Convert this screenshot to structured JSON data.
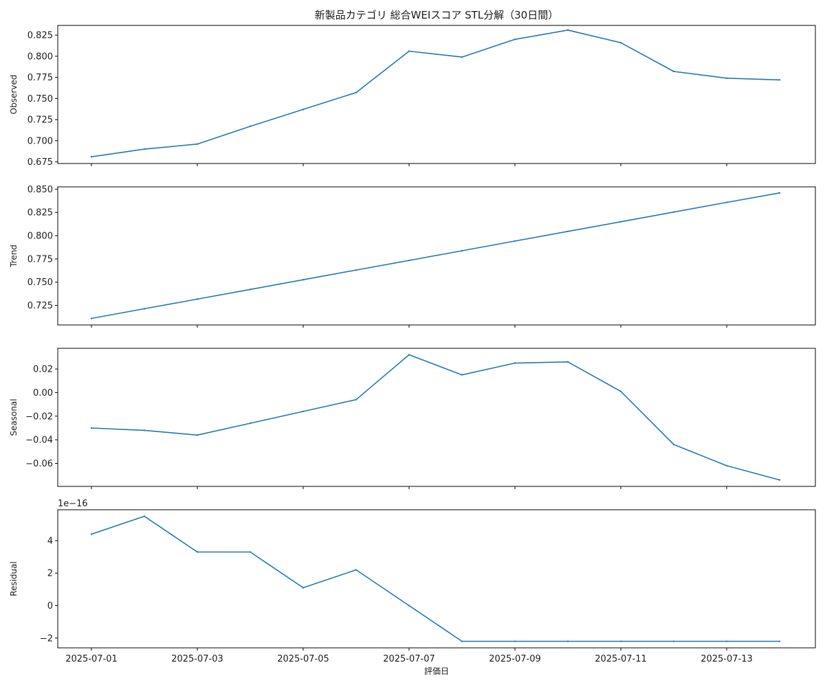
{
  "chart_data": {
    "type": "line",
    "title": "新製品カテゴリ 総合WEIスコア STL分解（30日間）",
    "xlabel": "評価日",
    "x": [
      "2025-07-01",
      "2025-07-02",
      "2025-07-03",
      "2025-07-04",
      "2025-07-05",
      "2025-07-06",
      "2025-07-07",
      "2025-07-08",
      "2025-07-09",
      "2025-07-10",
      "2025-07-11",
      "2025-07-12",
      "2025-07-13",
      "2025-07-14"
    ],
    "x_ticks": [
      "2025-07-01",
      "2025-07-03",
      "2025-07-05",
      "2025-07-07",
      "2025-07-09",
      "2025-07-11",
      "2025-07-13"
    ],
    "line_color": "#1f77b4",
    "grid": false,
    "panels": [
      {
        "ylabel": "Observed",
        "ylim": [
          0.673,
          0.8365
        ],
        "yticks": [
          "0.675",
          "0.700",
          "0.725",
          "0.750",
          "0.775",
          "0.800",
          "0.825"
        ],
        "values": [
          0.681,
          0.69,
          0.696,
          0.717,
          0.737,
          0.757,
          0.806,
          0.799,
          0.82,
          0.831,
          0.816,
          0.782,
          0.774,
          0.772
        ]
      },
      {
        "ylabel": "Trend",
        "ylim": [
          0.704,
          0.8525
        ],
        "yticks": [
          "0.725",
          "0.750",
          "0.775",
          "0.800",
          "0.825",
          "0.850"
        ],
        "values": [
          0.711,
          0.7214,
          0.7318,
          0.7422,
          0.7526,
          0.763,
          0.7734,
          0.7838,
          0.7942,
          0.8046,
          0.815,
          0.8254,
          0.8358,
          0.846
        ]
      },
      {
        "ylabel": "Seasonal",
        "ylim": [
          -0.0795,
          0.0375
        ],
        "yticks": [
          "0.02",
          "0.00",
          "−0.02",
          "−0.04",
          "−0.06"
        ],
        "values": [
          -0.03,
          -0.032,
          -0.036,
          -0.026,
          -0.016,
          -0.006,
          0.032,
          0.015,
          0.025,
          0.026,
          0.001,
          -0.044,
          -0.062,
          -0.074
        ]
      },
      {
        "ylabel": "Residual",
        "offset_label": "1e−16",
        "ylim": [
          -2.6,
          5.9
        ],
        "yticks": [
          "4",
          "2",
          "0",
          "−2"
        ],
        "values": [
          4.4,
          5.5,
          3.3,
          3.3,
          1.1,
          2.2,
          0.0,
          -2.2,
          -2.2,
          -2.2,
          -2.2,
          -2.2,
          -2.2,
          -2.2
        ]
      }
    ]
  }
}
